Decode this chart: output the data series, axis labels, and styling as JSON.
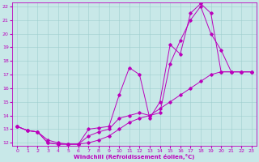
{
  "xlabel": "Windchill (Refroidissement éolien,°C)",
  "bg_color": "#c8e8e8",
  "line_color": "#bb00bb",
  "xlim": [
    -0.5,
    23.5
  ],
  "ylim": [
    11.8,
    22.3
  ],
  "xticks": [
    0,
    1,
    2,
    3,
    4,
    5,
    6,
    7,
    8,
    9,
    10,
    11,
    12,
    13,
    14,
    15,
    16,
    17,
    18,
    19,
    20,
    21,
    22,
    23
  ],
  "yticks": [
    12,
    13,
    14,
    15,
    16,
    17,
    18,
    19,
    20,
    21,
    22
  ],
  "series": [
    {
      "x": [
        0,
        1,
        2,
        3,
        4,
        5,
        6,
        7,
        8,
        9,
        10,
        11,
        12,
        13,
        14,
        15,
        16,
        17,
        18,
        19,
        20,
        21,
        22,
        23
      ],
      "y": [
        13.2,
        12.9,
        12.8,
        12.0,
        11.9,
        11.9,
        11.9,
        13.0,
        13.1,
        13.2,
        15.5,
        17.5,
        17.0,
        13.8,
        15.0,
        19.2,
        18.5,
        21.5,
        22.2,
        21.5,
        17.2,
        17.2,
        17.2,
        17.2
      ]
    },
    {
      "x": [
        0,
        1,
        2,
        3,
        4,
        5,
        6,
        7,
        8,
        9,
        10,
        11,
        12,
        13,
        14,
        15,
        16,
        17,
        18,
        19,
        20,
        21,
        22,
        23
      ],
      "y": [
        13.2,
        12.9,
        12.8,
        12.2,
        12.0,
        11.9,
        11.9,
        12.5,
        12.8,
        13.0,
        13.8,
        14.0,
        14.2,
        14.0,
        14.2,
        17.8,
        19.5,
        21.0,
        22.0,
        20.0,
        18.8,
        17.2,
        17.2,
        17.2
      ]
    },
    {
      "x": [
        0,
        1,
        2,
        3,
        4,
        5,
        6,
        7,
        8,
        9,
        10,
        11,
        12,
        13,
        14,
        15,
        16,
        17,
        18,
        19,
        20,
        21,
        22,
        23
      ],
      "y": [
        13.2,
        12.9,
        12.8,
        12.0,
        11.9,
        11.9,
        11.9,
        12.0,
        12.2,
        12.5,
        13.0,
        13.5,
        13.8,
        14.0,
        14.5,
        15.0,
        15.5,
        16.0,
        16.5,
        17.0,
        17.2,
        17.2,
        17.2,
        17.2
      ]
    }
  ]
}
